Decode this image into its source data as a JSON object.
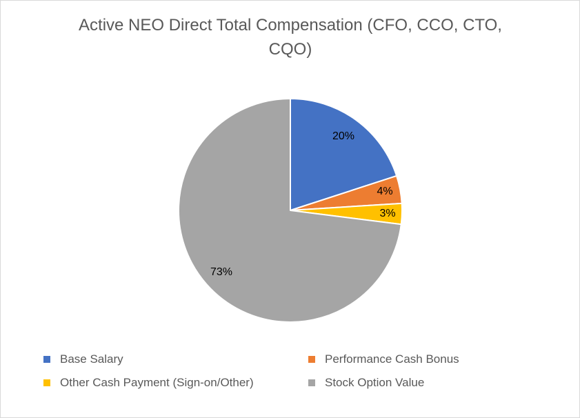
{
  "chart_data": {
    "type": "pie",
    "title": "Active NEO Direct Total Compensation  (CFO, CCO, CTO, CQO)",
    "title_lines": [
      "Active NEO Direct Total Compensation  (CFO, CCO, CTO,",
      "CQO)"
    ],
    "categories": [
      "Base Salary",
      "Performance Cash Bonus",
      "Other Cash Payment (Sign-on/Other)",
      "Stock Option Value"
    ],
    "values": [
      20,
      4,
      3,
      73
    ],
    "labels": [
      "20%",
      "4%",
      "3%",
      "73%"
    ],
    "colors": [
      "#4472c4",
      "#ed7d31",
      "#ffc000",
      "#a5a5a5"
    ],
    "legend_position": "bottom"
  }
}
